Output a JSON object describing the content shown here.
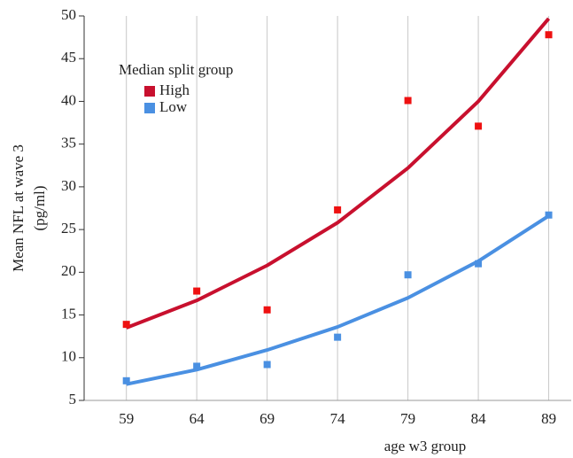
{
  "chart_data": {
    "type": "scatter",
    "x_label": "age w3 group",
    "y_label": [
      "Mean NFL at wave 3",
      "(pg/ml)"
    ],
    "legend_title": "Median split group",
    "x": [
      59,
      64,
      69,
      74,
      79,
      84,
      89
    ],
    "series": [
      {
        "name": "High",
        "color": "#ee1111",
        "fit_color": "#c8102e",
        "values": [
          13.9,
          17.8,
          15.6,
          27.3,
          40.1,
          37.1,
          47.8
        ],
        "fit": [
          13.5,
          16.7,
          20.8,
          25.8,
          32.2,
          40.0,
          49.7
        ]
      },
      {
        "name": "Low",
        "color": "#4a90e2",
        "fit_color": "#4a90e2",
        "values": [
          7.3,
          9.0,
          9.2,
          12.4,
          19.7,
          21.0,
          26.7
        ],
        "fit": [
          6.9,
          8.6,
          10.9,
          13.6,
          17.0,
          21.3,
          26.6
        ]
      }
    ],
    "xlim": [
      56,
      90.6
    ],
    "xticks": [
      59,
      64,
      69,
      74,
      79,
      84,
      89
    ],
    "ylim": [
      5,
      50
    ],
    "yticks": [
      5,
      10,
      15,
      20,
      25,
      30,
      35,
      40,
      45,
      50
    ],
    "grid": "x"
  }
}
